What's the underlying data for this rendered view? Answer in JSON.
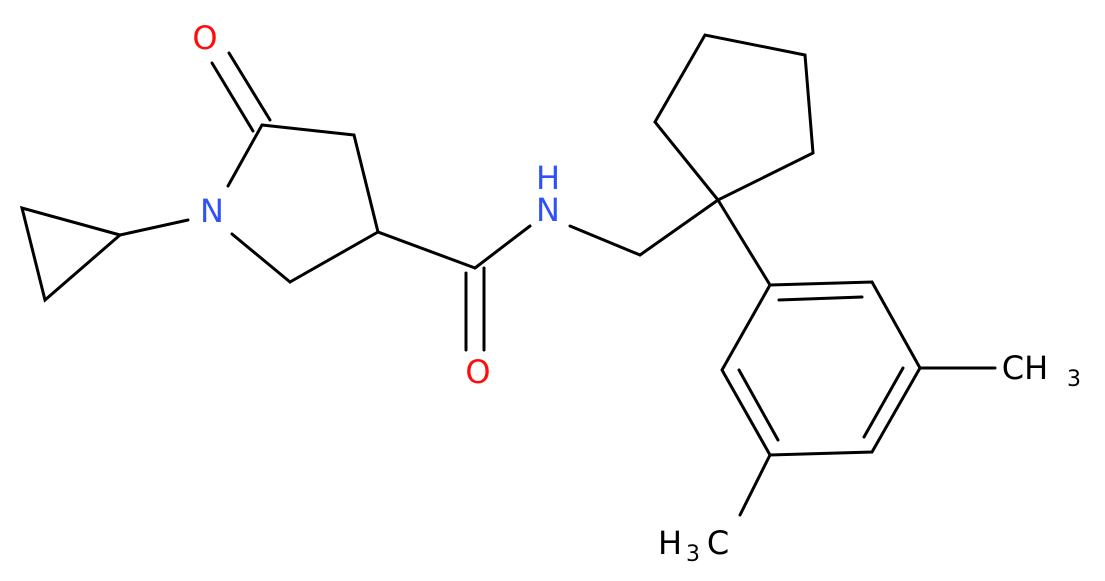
{
  "atoms": {
    "carbonyl_oxygen": "O",
    "ring_nitrogen": "N",
    "amide_nitrogen": "N",
    "amide_hydrogen": "H",
    "amide_oxygen": "O",
    "methyl_right": {
      "main": "CH",
      "sub": "3"
    },
    "methyl_bottom": {
      "pre": "H",
      "sub": "3",
      "main": "C"
    }
  }
}
